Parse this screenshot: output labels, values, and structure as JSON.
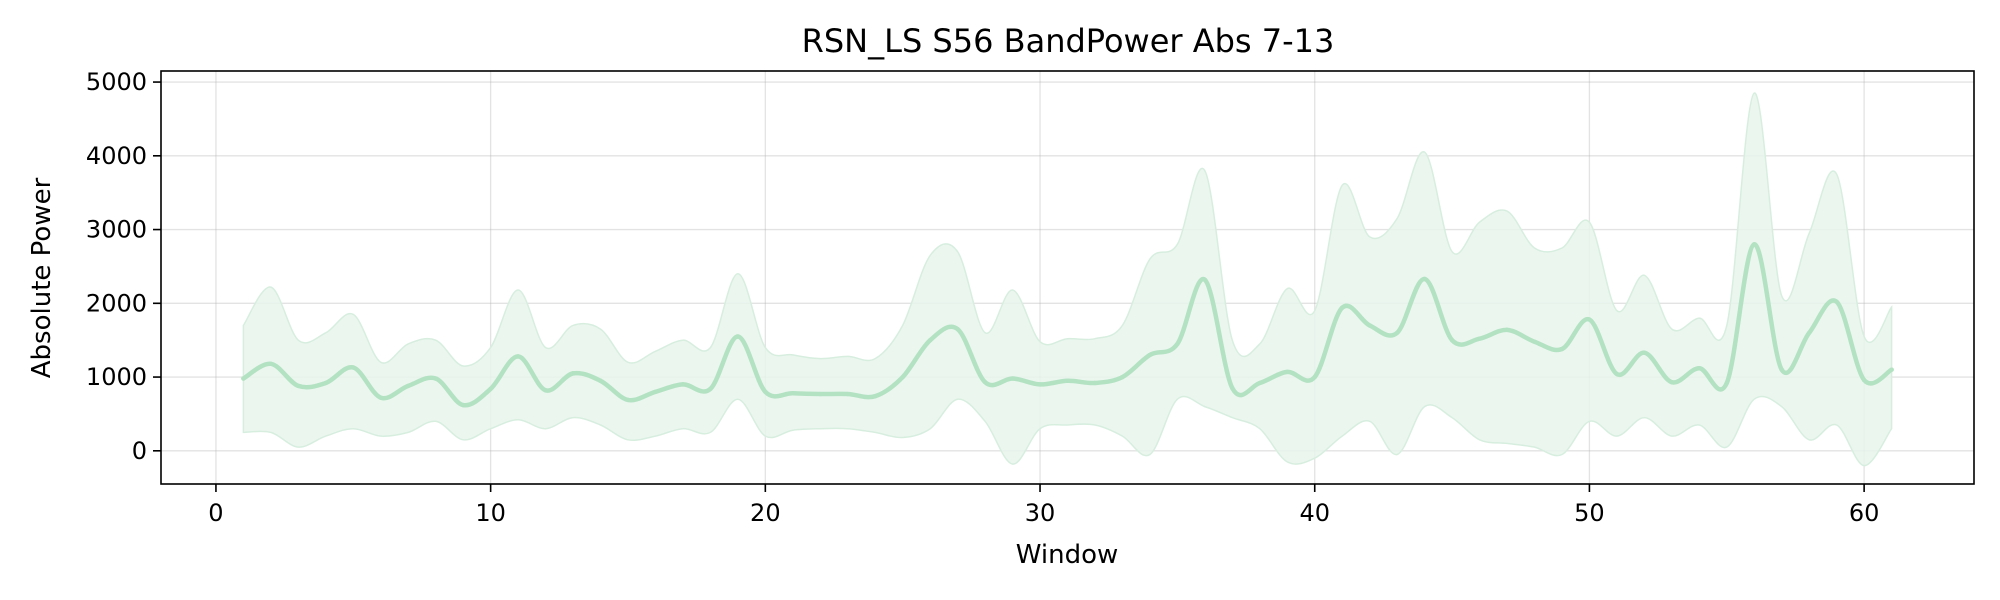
{
  "chart_data": {
    "type": "line",
    "title": "RSN_LS S56 BandPower Abs 7-13",
    "xlabel": "Window",
    "ylabel": "Absolute Power",
    "xlim": [
      -2,
      64
    ],
    "ylim": [
      -450,
      5150
    ],
    "xticks": [
      0,
      10,
      20,
      30,
      40,
      50,
      60
    ],
    "yticks": [
      0,
      1000,
      2000,
      3000,
      4000,
      5000
    ],
    "grid": true,
    "colors": {
      "line": "#b3e2c2",
      "band": "#e8f5ec",
      "band_edge": "#d7eedf"
    },
    "series": [
      {
        "x": [
          1,
          2,
          3,
          4,
          5,
          6,
          7,
          8,
          9,
          10,
          11,
          12,
          13,
          14,
          15,
          16,
          17,
          18,
          19,
          20,
          21,
          22,
          23,
          24,
          25,
          26,
          27,
          28,
          29,
          30,
          31,
          32,
          33,
          34,
          35,
          36,
          37,
          38,
          39,
          40,
          41,
          42,
          43,
          44,
          45,
          46,
          47,
          48,
          49,
          50,
          51,
          52,
          53,
          54,
          55,
          56,
          57,
          58,
          59,
          60,
          61
        ],
        "mean": [
          980,
          1180,
          880,
          920,
          1130,
          720,
          880,
          980,
          620,
          840,
          1280,
          820,
          1050,
          950,
          690,
          800,
          900,
          840,
          1550,
          800,
          780,
          770,
          770,
          740,
          1000,
          1500,
          1650,
          930,
          980,
          900,
          950,
          920,
          1000,
          1300,
          1450,
          2320,
          850,
          920,
          1070,
          1000,
          1940,
          1700,
          1600,
          2330,
          1500,
          1520,
          1640,
          1480,
          1380,
          1780,
          1040,
          1330,
          930,
          1120,
          920,
          2800,
          1100,
          1600,
          2020,
          960,
          1100
        ],
        "upper": [
          1700,
          2220,
          1500,
          1600,
          1850,
          1200,
          1450,
          1500,
          1150,
          1400,
          2180,
          1400,
          1700,
          1650,
          1200,
          1350,
          1500,
          1400,
          2400,
          1400,
          1300,
          1250,
          1280,
          1250,
          1700,
          2650,
          2700,
          1600,
          2180,
          1480,
          1520,
          1520,
          1700,
          2600,
          2800,
          3800,
          1500,
          1450,
          2200,
          1900,
          3600,
          2900,
          3150,
          4050,
          2700,
          3100,
          3250,
          2750,
          2750,
          3100,
          1900,
          2380,
          1650,
          1800,
          1700,
          4850,
          2100,
          2950,
          3750,
          1550,
          1950
        ],
        "lower": [
          250,
          250,
          50,
          200,
          300,
          200,
          250,
          400,
          150,
          300,
          420,
          300,
          450,
          350,
          150,
          200,
          300,
          250,
          700,
          200,
          280,
          300,
          300,
          250,
          180,
          300,
          700,
          400,
          -180,
          300,
          350,
          350,
          200,
          -50,
          700,
          600,
          450,
          300,
          -150,
          -100,
          200,
          400,
          -50,
          600,
          450,
          150,
          100,
          50,
          -50,
          400,
          200,
          450,
          200,
          350,
          50,
          700,
          600,
          150,
          350,
          -200,
          300
        ]
      }
    ]
  }
}
